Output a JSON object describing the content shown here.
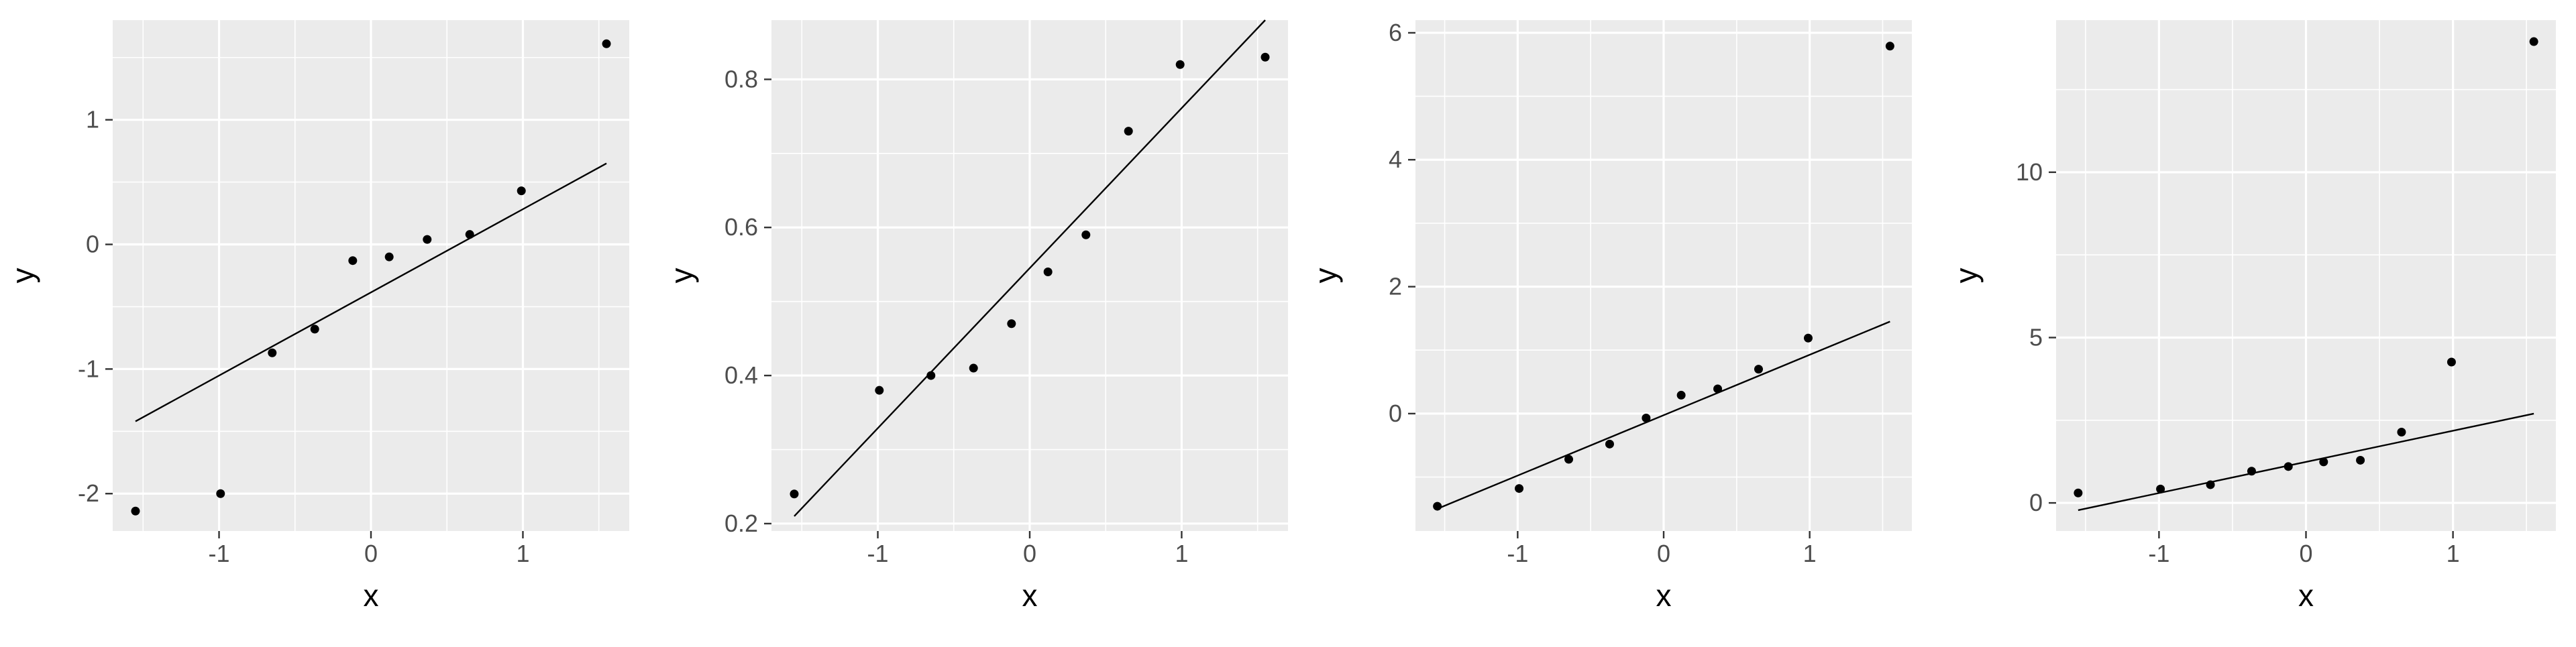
{
  "colors": {
    "panel_bg": "#EBEBEB",
    "grid": "#FFFFFF",
    "tick_text": "#4D4D4D",
    "axis_title": "#000000",
    "point": "#000000",
    "line": "#000000"
  },
  "chart_data": [
    {
      "type": "scatter",
      "title": "",
      "xlabel": "x",
      "ylabel": "y",
      "grid": true,
      "xlim": [
        -1.7,
        1.7
      ],
      "ylim": [
        -2.3,
        1.8
      ],
      "xticks": [
        -1,
        0,
        1
      ],
      "xtick_labels": [
        "-1",
        "0",
        "1"
      ],
      "yticks": [
        -2,
        -1,
        0,
        1
      ],
      "ytick_labels": [
        "-2",
        "-1",
        "0",
        "1"
      ],
      "points": {
        "x": [
          -1.55,
          -0.99,
          -0.65,
          -0.37,
          -0.12,
          0.12,
          0.37,
          0.65,
          0.99,
          1.55
        ],
        "y": [
          -2.14,
          -2.0,
          -0.87,
          -0.68,
          -0.13,
          -0.1,
          0.04,
          0.08,
          0.43,
          1.61
        ]
      },
      "line": {
        "x": [
          -1.55,
          1.55
        ],
        "y": [
          -1.42,
          0.65
        ]
      }
    },
    {
      "type": "scatter",
      "title": "",
      "xlabel": "x",
      "ylabel": "y",
      "grid": true,
      "xlim": [
        -1.7,
        1.7
      ],
      "ylim": [
        0.19,
        0.88
      ],
      "xticks": [
        -1,
        0,
        1
      ],
      "xtick_labels": [
        "-1",
        "0",
        "1"
      ],
      "yticks": [
        0.2,
        0.4,
        0.6,
        0.8
      ],
      "ytick_labels": [
        "0.2",
        "0.4",
        "0.6",
        "0.8"
      ],
      "points": {
        "x": [
          -1.55,
          -0.99,
          -0.65,
          -0.37,
          -0.12,
          0.12,
          0.37,
          0.65,
          0.99,
          1.55
        ],
        "y": [
          0.24,
          0.38,
          0.4,
          0.41,
          0.47,
          0.54,
          0.59,
          0.73,
          0.82,
          0.83
        ]
      },
      "line": {
        "x": [
          -1.55,
          1.55
        ],
        "y": [
          0.21,
          0.88
        ]
      }
    },
    {
      "type": "scatter",
      "title": "",
      "xlabel": "x",
      "ylabel": "y",
      "grid": true,
      "xlim": [
        -1.7,
        1.7
      ],
      "ylim": [
        -1.85,
        6.2
      ],
      "xticks": [
        -1,
        0,
        1
      ],
      "xtick_labels": [
        "-1",
        "0",
        "1"
      ],
      "yticks": [
        0,
        2,
        4,
        6
      ],
      "ytick_labels": [
        "0",
        "2",
        "4",
        "6"
      ],
      "points": {
        "x": [
          -1.55,
          -0.99,
          -0.65,
          -0.37,
          -0.12,
          0.12,
          0.37,
          0.65,
          0.99,
          1.55
        ],
        "y": [
          -1.46,
          -1.18,
          -0.72,
          -0.48,
          -0.07,
          0.29,
          0.39,
          0.7,
          1.19,
          5.79
        ]
      },
      "line": {
        "x": [
          -1.55,
          1.55
        ],
        "y": [
          -1.5,
          1.45
        ]
      }
    },
    {
      "type": "scatter",
      "title": "",
      "xlabel": "x",
      "ylabel": "y",
      "grid": true,
      "xlim": [
        -1.7,
        1.7
      ],
      "ylim": [
        -0.85,
        14.6
      ],
      "xticks": [
        -1,
        0,
        1
      ],
      "xtick_labels": [
        "-1",
        "0",
        "1"
      ],
      "yticks": [
        0,
        5,
        10
      ],
      "ytick_labels": [
        "0",
        "5",
        "10"
      ],
      "points": {
        "x": [
          -1.55,
          -0.99,
          -0.65,
          -0.37,
          -0.12,
          0.12,
          0.37,
          0.65,
          0.99,
          1.55
        ],
        "y": [
          0.3,
          0.42,
          0.55,
          0.96,
          1.1,
          1.24,
          1.29,
          2.14,
          4.26,
          13.95
        ]
      },
      "line": {
        "x": [
          -1.55,
          1.55
        ],
        "y": [
          -0.22,
          2.7
        ]
      }
    }
  ]
}
